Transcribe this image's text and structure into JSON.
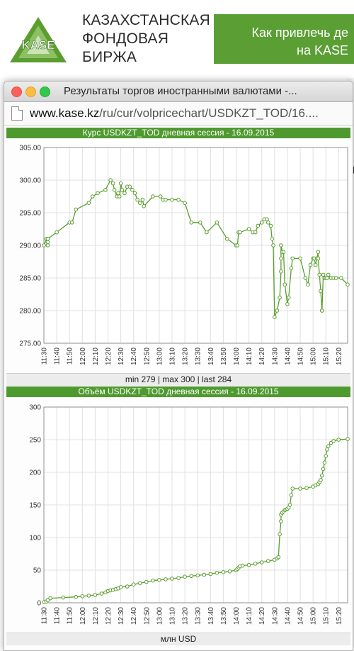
{
  "site": {
    "logo_abbr": "KASE",
    "logo_lines": [
      "КАЗАХСТАНСКАЯ",
      "ФОНДОВАЯ",
      "БИРЖА"
    ],
    "promo_lines": [
      "Как привлечь де",
      "на KASE"
    ],
    "bg_letter": "а"
  },
  "window": {
    "title": "Результаты торгов иностранными валютами -...",
    "url_host": "www.kase.kz",
    "url_path": "/ru/cur/volpricechart/USDKZT_TOD/16...."
  },
  "colors": {
    "accent": "#4f9a2f",
    "series": "#5a9e2f"
  },
  "chart_data": [
    {
      "type": "line",
      "title": "Курс USDKZT_TOD дневная сессия - 16.09.2015",
      "footer": "min 279 | max 300 | last 284",
      "ylim": [
        275,
        305
      ],
      "yticks": [
        "275.00",
        "280.00",
        "285.00",
        "290.00",
        "295.00",
        "300.00",
        "305.00"
      ],
      "xlim": [
        "11:30",
        "15:27"
      ],
      "xticks": [
        "11:30",
        "11:40",
        "11:50",
        "12:00",
        "12:10",
        "12:20",
        "12:30",
        "12:40",
        "12:50",
        "13:00",
        "13:10",
        "13:20",
        "13:30",
        "13:40",
        "13:50",
        "14:00",
        "14:10",
        "14:20",
        "14:30",
        "14:40",
        "14:50",
        "15:00",
        "15:10",
        "15:20"
      ],
      "grid": true,
      "x": [
        "11:30",
        "11:32",
        "11:33",
        "11:33",
        "11:33",
        "11:40",
        "11:50",
        "11:52",
        "11:55",
        "12:05",
        "12:08",
        "12:12",
        "12:18",
        "12:22",
        "12:24",
        "12:25",
        "12:27",
        "12:28",
        "12:29",
        "12:30",
        "12:31",
        "12:33",
        "12:35",
        "12:37",
        "12:39",
        "12:41",
        "12:43",
        "12:45",
        "12:47",
        "12:48",
        "12:55",
        "13:01",
        "13:03",
        "13:05",
        "13:10",
        "13:15",
        "13:20",
        "13:25",
        "13:32",
        "13:37",
        "13:45",
        "13:53",
        "14:00",
        "14:01",
        "14:02",
        "14:03",
        "14:10",
        "14:13",
        "14:15",
        "14:17",
        "14:20",
        "14:22",
        "14:24",
        "14:25",
        "14:27",
        "14:28",
        "14:29",
        "14:30",
        "14:32",
        "14:34",
        "14:35",
        "14:35",
        "14:35",
        "14:36",
        "14:37",
        "14:38",
        "14:40",
        "14:41",
        "14:43",
        "14:44",
        "14:50",
        "14:54",
        "14:56",
        "14:58",
        "15:00",
        "15:01",
        "15:02",
        "15:03",
        "15:04",
        "15:04",
        "15:05",
        "15:06",
        "15:07",
        "15:07",
        "15:08",
        "15:09",
        "15:10",
        "15:11",
        "15:12",
        "15:14",
        "15:16",
        "15:18",
        "15:22",
        "15:27"
      ],
      "y": [
        290,
        291,
        290,
        290.5,
        291,
        292,
        293.5,
        293.5,
        295.5,
        296.5,
        297.5,
        298,
        298.5,
        300,
        299.5,
        298.5,
        297.5,
        298,
        297.5,
        299.5,
        298.5,
        298,
        299,
        299,
        298.5,
        298,
        297,
        296.5,
        297,
        296,
        297.5,
        297.5,
        297,
        297,
        297,
        297,
        296.5,
        293.5,
        293.5,
        292,
        293.5,
        291,
        290,
        290,
        292,
        292,
        292.5,
        292,
        292,
        293,
        293.5,
        294,
        294,
        293.5,
        293,
        291,
        290,
        279,
        280,
        282,
        286,
        288,
        290,
        289,
        289,
        284,
        281,
        282,
        286.5,
        288,
        288,
        285,
        284,
        287,
        288,
        288,
        287,
        288,
        289,
        288,
        285.5,
        283,
        280,
        280,
        285.5,
        285,
        285,
        285,
        285.5,
        285,
        285,
        285,
        285,
        284
      ]
    },
    {
      "type": "line",
      "title": "Объём USDKZT_TOD дневная сессия - 16.09.2015",
      "footer": "млн USD",
      "ylim": [
        0,
        300
      ],
      "yticks": [
        "0",
        "50",
        "100",
        "150",
        "200",
        "250",
        "300"
      ],
      "xlim": [
        "11:30",
        "15:27"
      ],
      "xticks": [
        "11:30",
        "11:40",
        "11:50",
        "12:00",
        "12:10",
        "12:20",
        "12:30",
        "12:40",
        "12:50",
        "13:00",
        "13:10",
        "13:20",
        "13:30",
        "13:40",
        "13:50",
        "14:00",
        "14:10",
        "14:20",
        "14:30",
        "14:40",
        "14:50",
        "15:00",
        "15:10",
        "15:20"
      ],
      "grid": true,
      "x": [
        "11:30",
        "11:32",
        "11:33",
        "11:35",
        "11:45",
        "11:55",
        "12:00",
        "12:05",
        "12:10",
        "12:15",
        "12:18",
        "12:20",
        "12:22",
        "12:24",
        "12:26",
        "12:28",
        "12:30",
        "12:35",
        "12:40",
        "12:45",
        "12:50",
        "12:55",
        "13:00",
        "13:05",
        "13:10",
        "13:15",
        "13:20",
        "13:25",
        "13:30",
        "13:35",
        "13:40",
        "13:45",
        "13:50",
        "13:55",
        "14:00",
        "14:01",
        "14:02",
        "14:03",
        "14:05",
        "14:10",
        "14:15",
        "14:20",
        "14:25",
        "14:30",
        "14:32",
        "14:33",
        "14:34",
        "14:35",
        "14:35",
        "14:36",
        "14:37",
        "14:38",
        "14:39",
        "14:40",
        "14:41",
        "14:42",
        "14:43",
        "14:44",
        "14:50",
        "14:55",
        "15:00",
        "15:02",
        "15:04",
        "15:05",
        "15:06",
        "15:07",
        "15:08",
        "15:09",
        "15:10",
        "15:11",
        "15:12",
        "15:14",
        "15:16",
        "15:20",
        "15:27"
      ],
      "y": [
        1,
        2,
        4,
        7,
        8,
        9,
        10,
        11,
        12,
        14,
        16,
        18,
        19,
        20,
        21,
        22,
        24,
        25,
        28,
        30,
        32,
        34,
        35,
        36,
        37,
        38,
        40,
        41,
        42,
        43,
        44,
        46,
        47,
        48,
        50,
        52,
        54,
        56,
        57,
        58,
        60,
        62,
        64,
        66,
        68,
        70,
        105,
        125,
        135,
        138,
        140,
        142,
        143,
        144,
        146,
        150,
        165,
        175,
        175,
        176,
        178,
        180,
        182,
        185,
        188,
        195,
        205,
        215,
        225,
        235,
        240,
        245,
        248,
        250,
        251
      ]
    }
  ]
}
